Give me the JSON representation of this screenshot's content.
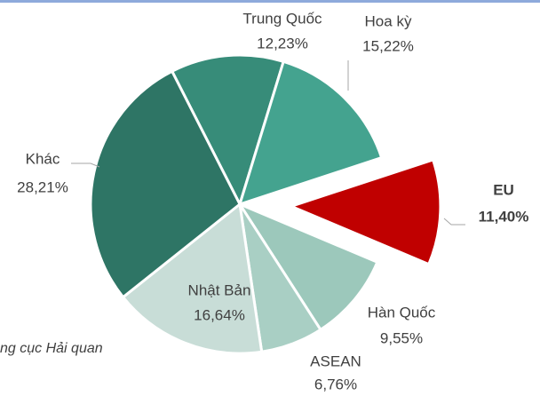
{
  "chart_data": {
    "type": "pie",
    "categories": [
      "Trung Quốc",
      "Hoa kỳ",
      "EU",
      "Hàn Quốc",
      "ASEAN",
      "Nhật Bản",
      "Khác"
    ],
    "values": [
      12.23,
      15.22,
      11.4,
      9.55,
      6.76,
      16.64,
      28.21
    ],
    "value_labels": [
      "12,23%",
      "15,22%",
      "11,40%",
      "9,55%",
      "6,76%",
      "16,64%",
      "28,21%"
    ],
    "colors": [
      "#378c79",
      "#44a38f",
      "#c00000",
      "#9cc8bb",
      "#a9cfc4",
      "#c8ddd7",
      "#2e7565"
    ],
    "highlight_color": "#1f3864",
    "source": "ng cục Hải quan"
  }
}
